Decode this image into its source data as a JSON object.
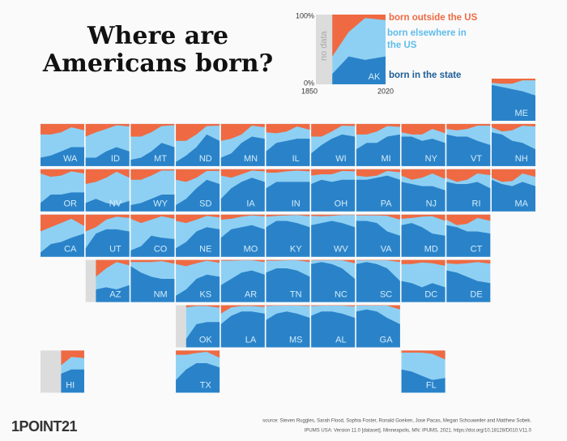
{
  "title": "Where are Americans born?",
  "legend": {
    "top_label": "100%",
    "bottom_label": "0%",
    "no_data": "no data",
    "outside": "born outside the US",
    "elsewhere": "born elsewhere in the US",
    "in_state": "born in the state"
  },
  "x": [
    1850,
    1890,
    1930,
    1970,
    2020
  ],
  "legend_state": {
    "label": "AK",
    "in_state": [
      null,
      15,
      40,
      35,
      40
    ],
    "outside_us": [
      null,
      60,
      25,
      5,
      8
    ]
  },
  "states": [
    {
      "label": "ME",
      "in_state": [
        85,
        80,
        75,
        70,
        60
      ],
      "outside_us": [
        10,
        12,
        12,
        4,
        4
      ]
    },
    {
      "label": "WA",
      "in_state": [
        20,
        25,
        35,
        45,
        45
      ],
      "outside_us": [
        25,
        25,
        20,
        8,
        15
      ]
    },
    {
      "label": "ID",
      "in_state": [
        20,
        20,
        35,
        45,
        35
      ],
      "outside_us": [
        30,
        20,
        12,
        3,
        6
      ]
    },
    {
      "label": "MT",
      "in_state": [
        15,
        20,
        35,
        55,
        45
      ],
      "outside_us": [
        30,
        30,
        20,
        5,
        3
      ]
    },
    {
      "label": "ND",
      "in_state": [
        10,
        25,
        45,
        75,
        60
      ],
      "outside_us": [
        40,
        40,
        25,
        5,
        4
      ]
    },
    {
      "label": "MN",
      "in_state": [
        20,
        30,
        55,
        70,
        65
      ],
      "outside_us": [
        40,
        35,
        25,
        4,
        8
      ]
    },
    {
      "label": "IL",
      "in_state": [
        35,
        55,
        60,
        65,
        65
      ],
      "outside_us": [
        20,
        22,
        18,
        6,
        14
      ]
    },
    {
      "label": "WI",
      "in_state": [
        30,
        50,
        65,
        75,
        70
      ],
      "outside_us": [
        30,
        30,
        18,
        4,
        5
      ]
    },
    {
      "label": "MI",
      "in_state": [
        40,
        55,
        55,
        70,
        75
      ],
      "outside_us": [
        25,
        25,
        18,
        5,
        7
      ]
    },
    {
      "label": "NY",
      "in_state": [
        70,
        70,
        60,
        65,
        55
      ],
      "outside_us": [
        20,
        25,
        25,
        12,
        22
      ]
    },
    {
      "label": "VT",
      "in_state": [
        75,
        70,
        70,
        60,
        50
      ],
      "outside_us": [
        12,
        15,
        12,
        4,
        4
      ]
    },
    {
      "label": "NH",
      "in_state": [
        80,
        75,
        60,
        55,
        40
      ],
      "outside_us": [
        8,
        18,
        15,
        4,
        6
      ]
    },
    {
      "label": "OR",
      "in_state": [
        20,
        40,
        40,
        45,
        45
      ],
      "outside_us": [
        10,
        18,
        15,
        5,
        10
      ]
    },
    {
      "label": "NV",
      "in_state": [
        20,
        30,
        20,
        15,
        25
      ],
      "outside_us": [
        35,
        30,
        20,
        6,
        20
      ]
    },
    {
      "label": "WY",
      "in_state": [
        15,
        20,
        30,
        40,
        40
      ],
      "outside_us": [
        25,
        25,
        15,
        3,
        3
      ]
    },
    {
      "label": "SD",
      "in_state": [
        15,
        30,
        55,
        75,
        65
      ],
      "outside_us": [
        25,
        30,
        20,
        4,
        4
      ]
    },
    {
      "label": "IA",
      "in_state": [
        30,
        55,
        70,
        80,
        70
      ],
      "outside_us": [
        15,
        20,
        12,
        3,
        5
      ]
    },
    {
      "label": "IN",
      "in_state": [
        55,
        70,
        70,
        70,
        70
      ],
      "outside_us": [
        8,
        8,
        5,
        3,
        5
      ]
    },
    {
      "label": "OH",
      "in_state": [
        65,
        75,
        70,
        75,
        75
      ],
      "outside_us": [
        15,
        12,
        12,
        4,
        5
      ]
    },
    {
      "label": "PA",
      "in_state": [
        75,
        75,
        80,
        85,
        75
      ],
      "outside_us": [
        15,
        18,
        15,
        4,
        7
      ]
    },
    {
      "label": "NJ",
      "in_state": [
        70,
        65,
        60,
        60,
        50
      ],
      "outside_us": [
        15,
        25,
        20,
        10,
        23
      ]
    },
    {
      "label": "RI",
      "in_state": [
        70,
        65,
        65,
        70,
        55
      ],
      "outside_us": [
        20,
        30,
        25,
        10,
        14
      ]
    },
    {
      "label": "MA",
      "in_state": [
        75,
        65,
        60,
        70,
        60
      ],
      "outside_us": [
        20,
        30,
        28,
        10,
        18
      ]
    },
    {
      "label": "CA",
      "in_state": [
        10,
        30,
        35,
        45,
        55
      ],
      "outside_us": [
        40,
        30,
        20,
        10,
        27
      ]
    },
    {
      "label": "UT",
      "in_state": [
        20,
        55,
        65,
        65,
        60
      ],
      "outside_us": [
        40,
        30,
        12,
        5,
        8
      ]
    },
    {
      "label": "CO",
      "in_state": [
        15,
        25,
        50,
        45,
        42
      ],
      "outside_us": [
        10,
        20,
        12,
        4,
        10
      ]
    },
    {
      "label": "NE",
      "in_state": [
        20,
        35,
        60,
        70,
        65
      ],
      "outside_us": [
        15,
        20,
        12,
        3,
        7
      ]
    },
    {
      "label": "MO",
      "in_state": [
        45,
        65,
        70,
        75,
        65
      ],
      "outside_us": [
        12,
        10,
        5,
        2,
        4
      ]
    },
    {
      "label": "KY",
      "in_state": [
        70,
        85,
        85,
        80,
        70
      ],
      "outside_us": [
        5,
        3,
        2,
        1,
        4
      ]
    },
    {
      "label": "WV",
      "in_state": [
        75,
        80,
        85,
        80,
        70
      ],
      "outside_us": [
        3,
        4,
        3,
        1,
        1
      ]
    },
    {
      "label": "VA",
      "in_state": [
        85,
        85,
        80,
        60,
        50
      ],
      "outside_us": [
        2,
        2,
        2,
        3,
        12
      ]
    },
    {
      "label": "MD",
      "in_state": [
        75,
        80,
        70,
        55,
        50
      ],
      "outside_us": [
        10,
        8,
        5,
        4,
        15
      ]
    },
    {
      "label": "CT",
      "in_state": [
        75,
        70,
        60,
        60,
        55
      ],
      "outside_us": [
        12,
        25,
        22,
        8,
        15
      ]
    },
    {
      "label": "AZ",
      "in_state": [
        null,
        30,
        35,
        30,
        40
      ],
      "outside_us": [
        null,
        40,
        20,
        5,
        13
      ]
    },
    {
      "label": "NM",
      "in_state": [
        85,
        70,
        60,
        55,
        55
      ],
      "outside_us": [
        5,
        5,
        5,
        3,
        9
      ]
    },
    {
      "label": "KS",
      "in_state": [
        15,
        30,
        55,
        65,
        60
      ],
      "outside_us": [
        10,
        15,
        8,
        2,
        7
      ]
    },
    {
      "label": "AR",
      "in_state": [
        40,
        55,
        70,
        75,
        65
      ],
      "outside_us": [
        2,
        2,
        1,
        1,
        5
      ]
    },
    {
      "label": "TN",
      "in_state": [
        70,
        80,
        80,
        75,
        60
      ],
      "outside_us": [
        2,
        2,
        1,
        1,
        5
      ]
    },
    {
      "label": "NC",
      "in_state": [
        90,
        95,
        90,
        80,
        55
      ],
      "outside_us": [
        1,
        1,
        1,
        1,
        8
      ]
    },
    {
      "label": "SC",
      "in_state": [
        90,
        95,
        90,
        80,
        50
      ],
      "outside_us": [
        1,
        1,
        1,
        1,
        5
      ]
    },
    {
      "label": "DC",
      "in_state": [
        50,
        45,
        35,
        45,
        35
      ],
      "outside_us": [
        10,
        10,
        6,
        8,
        14
      ]
    },
    {
      "label": "DE",
      "in_state": [
        75,
        70,
        60,
        50,
        45
      ],
      "outside_us": [
        8,
        10,
        8,
        5,
        9
      ]
    },
    {
      "label": "OK",
      "in_state": [
        null,
        20,
        55,
        60,
        60
      ],
      "outside_us": [
        null,
        5,
        2,
        2,
        6
      ]
    },
    {
      "label": "LA",
      "in_state": [
        55,
        75,
        85,
        85,
        80
      ],
      "outside_us": [
        20,
        5,
        2,
        2,
        4
      ]
    },
    {
      "label": "MS",
      "in_state": [
        65,
        80,
        85,
        80,
        70
      ],
      "outside_us": [
        2,
        1,
        1,
        1,
        2
      ]
    },
    {
      "label": "AL",
      "in_state": [
        75,
        85,
        85,
        80,
        70
      ],
      "outside_us": [
        2,
        1,
        1,
        1,
        3
      ]
    },
    {
      "label": "GA",
      "in_state": [
        85,
        90,
        85,
        70,
        55
      ],
      "outside_us": [
        1,
        1,
        1,
        1,
        10
      ]
    },
    {
      "label": "HI",
      "in_state": [
        null,
        null,
        45,
        55,
        55
      ],
      "outside_us": [
        null,
        null,
        35,
        15,
        18
      ]
    },
    {
      "label": "TX",
      "in_state": [
        30,
        55,
        70,
        70,
        60
      ],
      "outside_us": [
        10,
        10,
        6,
        3,
        17
      ]
    },
    {
      "label": "FL",
      "in_state": [
        55,
        50,
        40,
        30,
        35
      ],
      "outside_us": [
        5,
        5,
        5,
        8,
        21
      ]
    }
  ],
  "source": [
    "source: Steven Ruggles, Sarah Flood, Sophia Foster, Ronald Goeken, Jose Pacas, Megan Schouweiler and Matthew Sobek.",
    "IPUMS USA: Version 11.0 [dataset]. Minneapolis, MN: IPUMS, 2021. https://doi.org/10.18128/D010.V11.0"
  ],
  "logo": "1POINT21"
}
